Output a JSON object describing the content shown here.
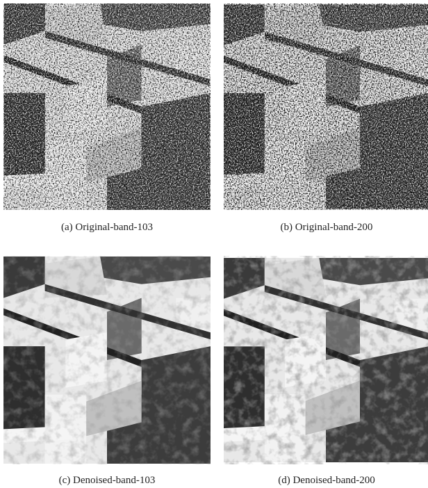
{
  "figure": {
    "panels": [
      {
        "caption": "(a) Original-band-103"
      },
      {
        "caption": "(b) Original-band-200"
      },
      {
        "caption": "(c) Denoised-band-103"
      },
      {
        "caption": "(d) Denoised-band-200"
      }
    ]
  }
}
